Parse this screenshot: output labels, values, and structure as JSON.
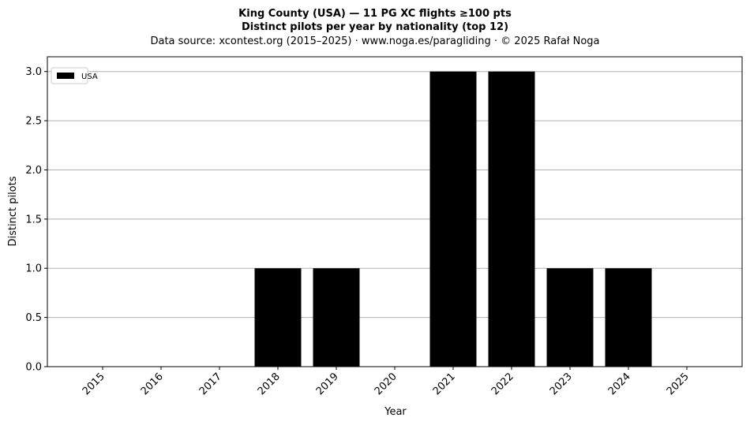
{
  "chart_data": {
    "type": "bar",
    "title": "King County (USA)  —  11 PG XC flights ≥100 pts",
    "subtitle": "Distinct pilots per year by nationality (top 12)",
    "source": "Data source: xcontest.org (2015–2025)  ·  www.noga.es/paragliding  ·  © 2025 Rafał Noga",
    "xlabel": "Year",
    "ylabel": "Distinct pilots",
    "categories": [
      "2015",
      "2016",
      "2017",
      "2018",
      "2019",
      "2020",
      "2021",
      "2022",
      "2023",
      "2024",
      "2025"
    ],
    "series": [
      {
        "name": "USA",
        "color": "#000000",
        "values": [
          0,
          0,
          0,
          1,
          1,
          0,
          3,
          3,
          1,
          1,
          0
        ]
      }
    ],
    "ylim": [
      0,
      3.15
    ],
    "yticks": [
      "0.0",
      "0.5",
      "1.0",
      "1.5",
      "2.0",
      "2.5",
      "3.0"
    ],
    "grid": "y",
    "legend_position": "top-left"
  }
}
